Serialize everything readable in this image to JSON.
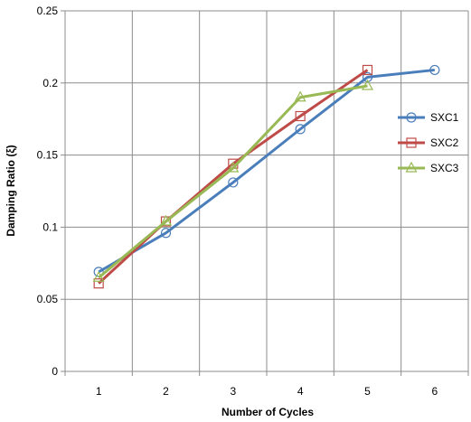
{
  "chart_data": {
    "type": "line",
    "title": "",
    "xlabel": "Number of Cycles",
    "ylabel": "Damping Ratio (ξ)",
    "xlim": [
      0.5,
      6.5
    ],
    "ylim": [
      0,
      0.25
    ],
    "x_ticks": [
      1,
      2,
      3,
      4,
      5,
      6
    ],
    "y_ticks": [
      0,
      0.05,
      0.1,
      0.15,
      0.2,
      0.25
    ],
    "x_tick_labels": [
      "1",
      "2",
      "3",
      "4",
      "5",
      "6"
    ],
    "y_tick_labels": [
      "0",
      "0.05",
      "0.1",
      "0.15",
      "0.2",
      "0.25"
    ],
    "grid": true,
    "legend_position": "right",
    "series": [
      {
        "name": "SXC1",
        "color": "#4a7ebb",
        "marker": "circle",
        "x": [
          1,
          2,
          3,
          4,
          5,
          6
        ],
        "values": [
          0.069,
          0.096,
          0.131,
          0.168,
          0.204,
          0.209
        ]
      },
      {
        "name": "SXC2",
        "color": "#be4b48",
        "marker": "square",
        "x": [
          1,
          2,
          3,
          4,
          5
        ],
        "values": [
          0.061,
          0.104,
          0.144,
          0.177,
          0.209
        ]
      },
      {
        "name": "SXC3",
        "color": "#98b954",
        "marker": "triangle",
        "x": [
          1,
          2,
          3,
          4,
          5
        ],
        "values": [
          0.065,
          0.104,
          0.141,
          0.19,
          0.198
        ]
      }
    ]
  }
}
